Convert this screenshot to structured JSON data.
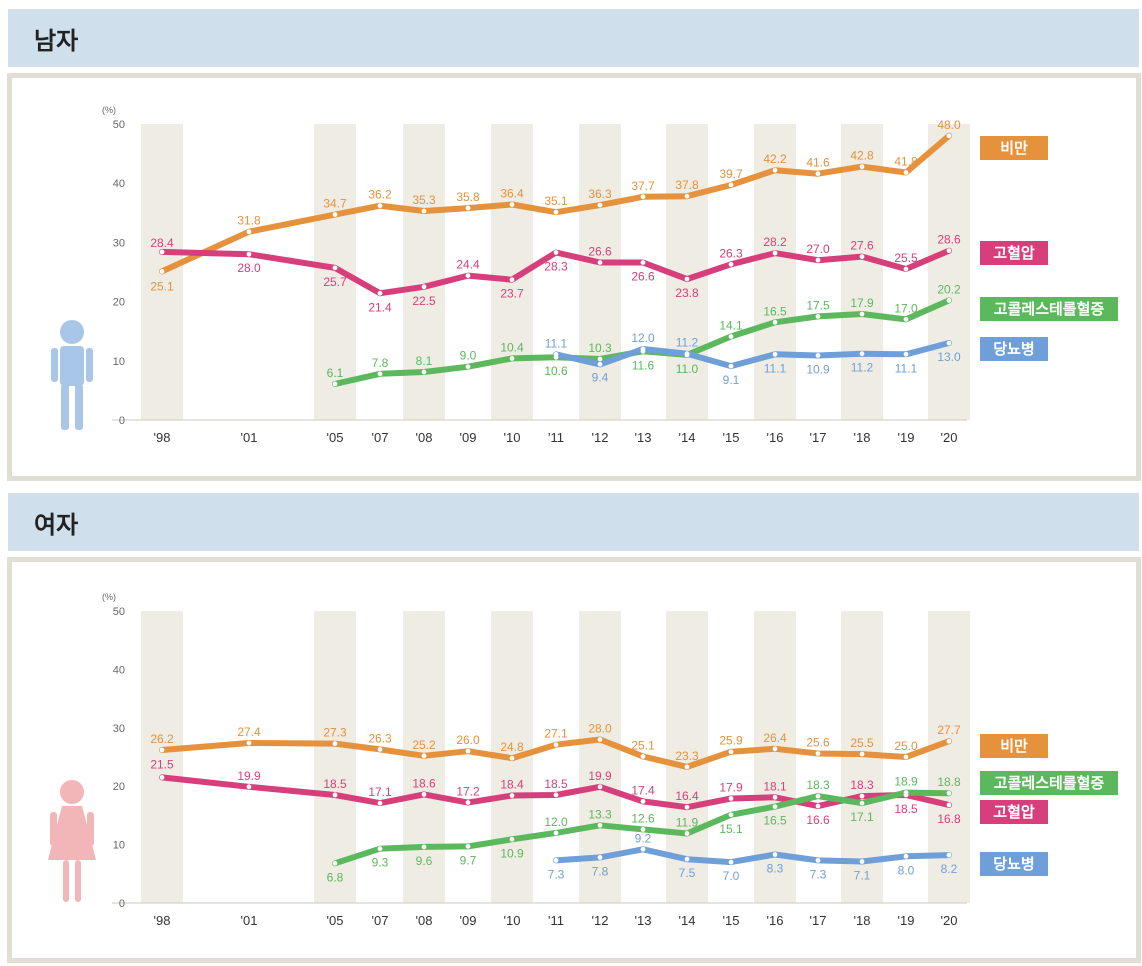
{
  "panels": {
    "male": {
      "title": "남자"
    },
    "female": {
      "title": "여자"
    }
  },
  "colors": {
    "obesity": "#e6913c",
    "hypertension": "#d63f7c",
    "cholesterol": "#5cb85c",
    "diabetes": "#6f9fd8",
    "column_band": "#efece4",
    "header_bg": "#cfe0ec",
    "frame": "#e1dfd4"
  },
  "chart_data": [
    {
      "type": "line",
      "title": "남자",
      "ylabel": "(%)",
      "ylim": [
        0,
        50
      ],
      "yticks": [
        "0",
        "10",
        "20",
        "30",
        "40",
        "50"
      ],
      "categories": [
        "'98",
        "'01",
        "'05",
        "'07",
        "'08",
        "'09",
        "'10",
        "'11",
        "'12",
        "'13",
        "'14",
        "'15",
        "'16",
        "'17",
        "'18",
        "'19",
        "'20"
      ],
      "series": [
        {
          "key": "obesity",
          "name": "비만",
          "values": [
            25.1,
            31.8,
            34.7,
            36.2,
            35.3,
            35.8,
            36.4,
            35.1,
            36.3,
            37.7,
            37.8,
            39.7,
            42.2,
            41.6,
            42.8,
            41.8,
            48.0
          ],
          "labels": [
            "25.1",
            "31.8",
            "34.7",
            "36.2",
            "35.3",
            "35.8",
            "36.4",
            "35.1",
            "36.3",
            "37.7",
            "37.8",
            "39.7",
            "42.2",
            "41.6",
            "42.8",
            "41.8",
            "48.0"
          ]
        },
        {
          "key": "hypertension",
          "name": "고혈압",
          "values": [
            28.4,
            28.0,
            25.7,
            21.4,
            22.5,
            24.4,
            23.7,
            28.3,
            26.6,
            26.6,
            23.8,
            26.3,
            28.2,
            27.0,
            27.6,
            25.5,
            28.6
          ],
          "labels": [
            "28.4",
            "28.0",
            "25.7",
            "21.4",
            "22.5",
            "24.4",
            "23.7",
            "28.3",
            "26.6",
            "26.6",
            "23.8",
            "26.3",
            "28.2",
            "27.0",
            "27.6",
            "25.5",
            "28.6"
          ]
        },
        {
          "key": "cholesterol",
          "name": "고콜레스테롤혈증",
          "values": [
            null,
            null,
            6.1,
            7.8,
            8.1,
            9.0,
            10.4,
            10.6,
            10.3,
            11.6,
            11.0,
            14.1,
            16.5,
            17.5,
            17.9,
            17.0,
            20.2
          ],
          "labels": [
            "",
            "",
            "6.1",
            "7.8",
            "8.1",
            "9.0",
            "10.4",
            "10.6",
            "10.3",
            "11.6",
            "11.0",
            "14.1",
            "16.5",
            "17.5",
            "17.9",
            "17.0",
            "20.2"
          ]
        },
        {
          "key": "diabetes",
          "name": "당뇨병",
          "values": [
            null,
            null,
            null,
            null,
            null,
            null,
            null,
            11.1,
            9.4,
            12.0,
            11.2,
            9.1,
            11.1,
            10.9,
            11.2,
            11.1,
            13.0
          ],
          "labels": [
            "",
            "",
            "",
            "",
            "",
            "",
            "",
            "11.1",
            "9.4",
            "12.0",
            "11.2",
            "9.1",
            "11.1",
            "10.9",
            "11.2",
            "11.1",
            "13.0"
          ]
        }
      ],
      "legend": [
        "비만",
        "고혈압",
        "고콜레스테롤혈증",
        "당뇨병"
      ]
    },
    {
      "type": "line",
      "title": "여자",
      "ylabel": "(%)",
      "ylim": [
        0,
        50
      ],
      "yticks": [
        "0",
        "10",
        "20",
        "30",
        "40",
        "50"
      ],
      "categories": [
        "'98",
        "'01",
        "'05",
        "'07",
        "'08",
        "'09",
        "'10",
        "'11",
        "'12",
        "'13",
        "'14",
        "'15",
        "'16",
        "'17",
        "'18",
        "'19",
        "'20"
      ],
      "series": [
        {
          "key": "obesity",
          "name": "비만",
          "values": [
            26.2,
            27.4,
            27.3,
            26.3,
            25.2,
            26.0,
            24.8,
            27.1,
            28.0,
            25.1,
            23.3,
            25.9,
            26.4,
            25.6,
            25.5,
            25.0,
            27.7
          ],
          "labels": [
            "26.2",
            "27.4",
            "27.3",
            "26.3",
            "25.2",
            "26.0",
            "24.8",
            "27.1",
            "28.0",
            "25.1",
            "23.3",
            "25.9",
            "26.4",
            "25.6",
            "25.5",
            "25.0",
            "27.7"
          ]
        },
        {
          "key": "hypertension",
          "name": "고혈압",
          "values": [
            21.5,
            19.9,
            18.5,
            17.1,
            18.6,
            17.2,
            18.4,
            18.5,
            19.9,
            17.4,
            16.4,
            17.9,
            18.1,
            16.6,
            18.3,
            18.5,
            16.8
          ],
          "labels": [
            "21.5",
            "19.9",
            "18.5",
            "17.1",
            "18.6",
            "17.2",
            "18.4",
            "18.5",
            "19.9",
            "17.4",
            "16.4",
            "17.9",
            "18.1",
            "16.6",
            "18.3",
            "18.5",
            "16.8"
          ]
        },
        {
          "key": "cholesterol",
          "name": "고콜레스테롤혈증",
          "values": [
            null,
            null,
            6.8,
            9.3,
            9.6,
            9.7,
            10.9,
            12.0,
            13.3,
            12.6,
            11.9,
            15.1,
            16.5,
            18.3,
            17.1,
            18.9,
            18.8
          ],
          "labels": [
            "",
            "",
            "6.8",
            "9.3",
            "9.6",
            "9.7",
            "10.9",
            "12.0",
            "13.3",
            "12.6",
            "11.9",
            "15.1",
            "16.5",
            "18.3",
            "17.1",
            "18.9",
            "18.8"
          ]
        },
        {
          "key": "diabetes",
          "name": "당뇨병",
          "values": [
            null,
            null,
            null,
            null,
            null,
            null,
            null,
            7.3,
            7.8,
            9.2,
            7.5,
            7.0,
            8.3,
            7.3,
            7.1,
            8.0,
            8.2
          ],
          "labels": [
            "",
            "",
            "",
            "",
            "",
            "",
            "",
            "7.3",
            "7.8",
            "9.2",
            "7.5",
            "7.0",
            "8.3",
            "7.3",
            "7.1",
            "8.0",
            "8.2"
          ]
        }
      ],
      "legend": [
        "비만",
        "고콜레스테롤혈증",
        "고혈압",
        "당뇨병"
      ]
    }
  ]
}
